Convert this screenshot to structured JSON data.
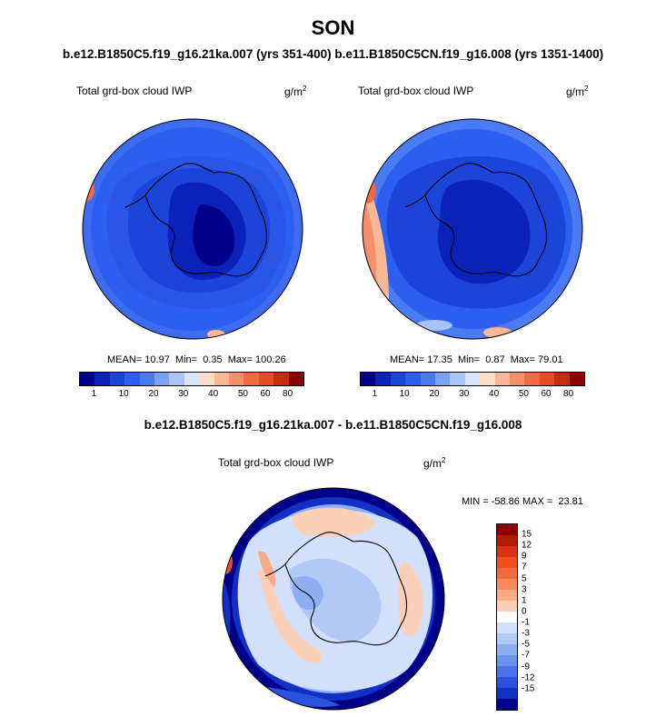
{
  "title": "SON",
  "subtitle": "b.e12.B1850C5.f19_g16.21ka.007 (yrs 351-400) b.e11.B1850C5CN.f19_g16.008 (yrs 1351-1400)",
  "panel_left": {
    "label": "Total grd-box cloud IWP",
    "units_base": "g/m",
    "units_exp": "2",
    "stats": {
      "mean_label": "MEAN=",
      "mean": "10.97",
      "min_label": "Min=",
      "min": "0.35",
      "max_label": "Max=",
      "max": "100.26"
    }
  },
  "panel_right": {
    "label": "Total grd-box cloud IWP",
    "units_base": "g/m",
    "units_exp": "2",
    "stats": {
      "mean_label": "MEAN=",
      "mean": "17.35",
      "min_label": "Min=",
      "min": "0.87",
      "max_label": "Max=",
      "max": "79.01"
    }
  },
  "abs_colorbar": {
    "colors": [
      "#00008b",
      "#0a22b8",
      "#1d44d8",
      "#2c5ef0",
      "#4a7bf2",
      "#7ba1f4",
      "#aac3f6",
      "#d8e4fa",
      "#fbdcc8",
      "#f8b896",
      "#f5906a",
      "#f26a42",
      "#e84a24",
      "#c42c0e",
      "#8b0000"
    ],
    "tick_labels": [
      "1",
      "10",
      "20",
      "30",
      "40",
      "50",
      "60",
      "80"
    ]
  },
  "diff_title": "b.e12.B1850C5.f19_g16.21ka.007 - b.e11.B1850C5CN.f19_g16.008",
  "panel_diff": {
    "label": "Total grd-box cloud IWP",
    "units_base": "g/m",
    "units_exp": "2",
    "minmax": "MIN = -58.86 MAX =  23.81"
  },
  "diff_colorbar": {
    "colors": [
      "#8b0000",
      "#b21a04",
      "#d83010",
      "#f0501e",
      "#f56a38",
      "#f88a5e",
      "#f9ab86",
      "#fbd0b8",
      "#ffffff",
      "#d2e0fb",
      "#b2c8f6",
      "#8eaef2",
      "#6c92ef",
      "#4a74ea",
      "#2a52de",
      "#1230c4",
      "#00008b"
    ],
    "tick_labels": [
      "15",
      "12",
      "9",
      "7",
      "5",
      "3",
      "1",
      "0",
      "-1",
      "-3",
      "-5",
      "-7",
      "-9",
      "-12",
      "-15"
    ]
  },
  "map_colors": {
    "ocean_light": "#4a7bf2",
    "ocean_mid": "#2c5ef0",
    "ice_dark": "#1d44d8",
    "ice_core": "#0a22b8",
    "ice_deep": "#00008b",
    "high": "#f26a42",
    "peak": "#8b0000",
    "diff_bg": "#ffffff",
    "diff_neg": "#d2e0fb",
    "diff_pos": "#fbd0b8",
    "diff_strong_neg": "#00008b"
  }
}
